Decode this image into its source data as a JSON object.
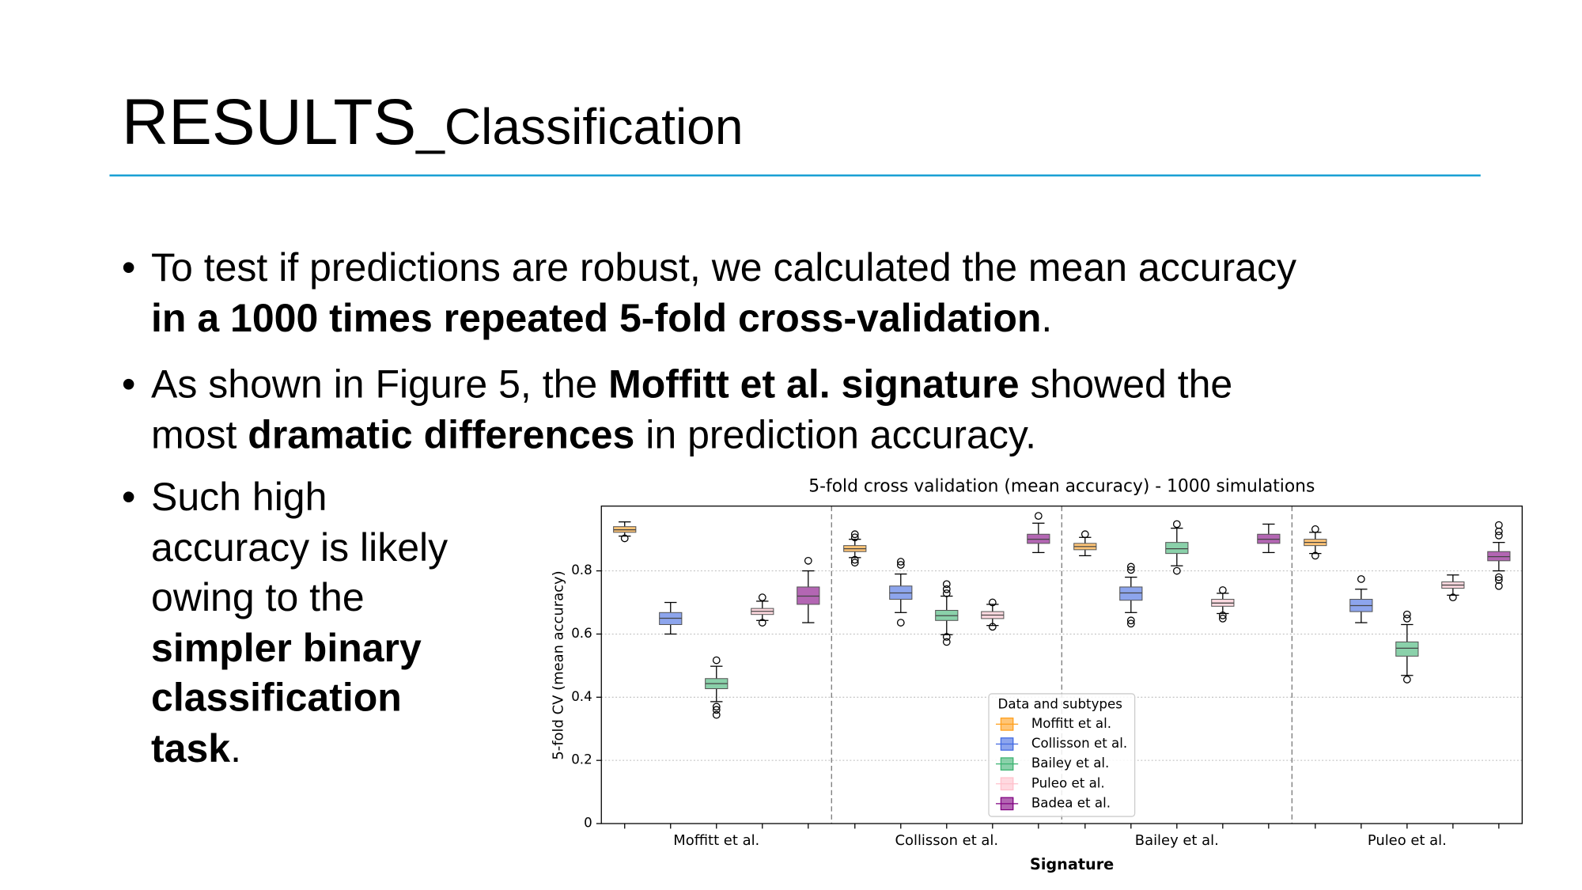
{
  "header": {
    "title": [
      {
        "text": "RESULTS",
        "size": "large"
      },
      {
        "text": "_Classification",
        "size": "small"
      }
    ]
  },
  "bullets": [
    [
      [
        {
          "text": "To test if predictions are robust, we calculated the mean accuracy",
          "bold": false
        }
      ],
      [
        {
          "text": "in a 1000 times repeated 5-fold cross-validation",
          "bold": true
        },
        {
          "text": ".",
          "bold": false
        }
      ]
    ],
    [
      [
        {
          "text": "As shown in Figure 5, the ",
          "bold": false
        },
        {
          "text": "Moffitt et al. signature",
          "bold": true
        },
        {
          "text": " showed the",
          "bold": false
        }
      ],
      [
        {
          "text": "most ",
          "bold": false
        },
        {
          "text": "dramatic differences",
          "bold": true
        },
        {
          "text": " in prediction accuracy.",
          "bold": false
        }
      ]
    ],
    [
      [
        {
          "text": "Such high",
          "bold": false
        }
      ],
      [
        {
          "text": "accuracy is likely",
          "bold": false
        }
      ],
      [
        {
          "text": "owing to the",
          "bold": false
        }
      ],
      [
        {
          "text": "simpler binary",
          "bold": true
        }
      ],
      [
        {
          "text": "classification",
          "bold": true
        }
      ],
      [
        {
          "text": "task",
          "bold": true
        },
        {
          "text": ".",
          "bold": false
        }
      ]
    ]
  ],
  "chart_data": {
    "type": "box",
    "title": "5-fold cross validation (mean accuracy) - 1000 simulations",
    "x_label": "Signature",
    "y_label": "5-fold CV (mean accuracy)",
    "legend_title": "Data and subtypes",
    "categories": [
      "Moffitt et al.",
      "Collisson et al.",
      "Bailey et al.",
      "Puleo et al."
    ],
    "ylim": [
      0,
      1.005
    ],
    "yticks": [
      0,
      0.2,
      0.4,
      0.6,
      0.8
    ],
    "grid": true,
    "series": [
      {
        "name": "Moffitt et al.",
        "color": "#ff9f1c",
        "values": [
          {
            "whislo": 0.91,
            "q1": 0.922,
            "med": 0.93,
            "q3": 0.94,
            "whishi": 0.955,
            "fliers": [
              0.903
            ]
          },
          {
            "whislo": 0.842,
            "q1": 0.861,
            "med": 0.87,
            "q3": 0.88,
            "whishi": 0.9,
            "fliers": [
              0.916,
              0.906,
              0.835,
              0.826
            ]
          },
          {
            "whislo": 0.848,
            "q1": 0.867,
            "med": 0.877,
            "q3": 0.887,
            "whishi": 0.906,
            "fliers": [
              0.916
            ]
          },
          {
            "whislo": 0.855,
            "q1": 0.88,
            "med": 0.89,
            "q3": 0.9,
            "whishi": 0.922,
            "fliers": [
              0.932,
              0.848
            ]
          }
        ]
      },
      {
        "name": "Collisson et al.",
        "color": "#4169e1",
        "values": [
          {
            "whislo": 0.6,
            "q1": 0.63,
            "med": 0.65,
            "q3": 0.668,
            "whishi": 0.7,
            "fliers": []
          },
          {
            "whislo": 0.668,
            "q1": 0.71,
            "med": 0.73,
            "q3": 0.752,
            "whishi": 0.79,
            "fliers": [
              0.829,
              0.819,
              0.636
            ]
          },
          {
            "whislo": 0.668,
            "q1": 0.707,
            "med": 0.73,
            "q3": 0.749,
            "whishi": 0.78,
            "fliers": [
              0.813,
              0.803,
              0.643,
              0.633
            ]
          },
          {
            "whislo": 0.636,
            "q1": 0.671,
            "med": 0.69,
            "q3": 0.71,
            "whishi": 0.742,
            "fliers": [
              0.774
            ]
          }
        ]
      },
      {
        "name": "Bailey et al.",
        "color": "#3cb371",
        "values": [
          {
            "whislo": 0.386,
            "q1": 0.427,
            "med": 0.443,
            "q3": 0.459,
            "whishi": 0.498,
            "fliers": [
              0.517,
              0.37,
              0.36,
              0.344
            ]
          },
          {
            "whislo": 0.598,
            "q1": 0.643,
            "med": 0.658,
            "q3": 0.675,
            "whishi": 0.72,
            "fliers": [
              0.758,
              0.742,
              0.729,
              0.591,
              0.575
            ]
          },
          {
            "whislo": 0.816,
            "q1": 0.855,
            "med": 0.87,
            "q3": 0.89,
            "whishi": 0.935,
            "fliers": [
              0.948,
              0.8
            ]
          },
          {
            "whislo": 0.469,
            "q1": 0.53,
            "med": 0.555,
            "q3": 0.575,
            "whishi": 0.63,
            "fliers": [
              0.662,
              0.649,
              0.456
            ]
          }
        ]
      },
      {
        "name": "Puleo et al.",
        "color": "#ffc0cb",
        "values": [
          {
            "whislo": 0.643,
            "q1": 0.662,
            "med": 0.672,
            "q3": 0.681,
            "whishi": 0.704,
            "fliers": [
              0.716,
              0.636
            ]
          },
          {
            "whislo": 0.627,
            "q1": 0.649,
            "med": 0.66,
            "q3": 0.671,
            "whishi": 0.694,
            "fliers": [
              0.7,
              0.623
            ]
          },
          {
            "whislo": 0.665,
            "q1": 0.688,
            "med": 0.698,
            "q3": 0.71,
            "whishi": 0.729,
            "fliers": [
              0.739,
              0.659,
              0.649
            ]
          },
          {
            "whislo": 0.723,
            "q1": 0.745,
            "med": 0.755,
            "q3": 0.765,
            "whishi": 0.787,
            "fliers": [
              0.716
            ]
          }
        ]
      },
      {
        "name": "Badea et al.",
        "color": "#800080",
        "values": [
          {
            "whislo": 0.636,
            "q1": 0.694,
            "med": 0.72,
            "q3": 0.749,
            "whishi": 0.8,
            "fliers": [
              0.832
            ]
          },
          {
            "whislo": 0.858,
            "q1": 0.887,
            "med": 0.9,
            "q3": 0.916,
            "whishi": 0.951,
            "fliers": [
              0.974
            ]
          },
          {
            "whislo": 0.858,
            "q1": 0.887,
            "med": 0.9,
            "q3": 0.916,
            "whishi": 0.948,
            "fliers": []
          },
          {
            "whislo": 0.8,
            "q1": 0.832,
            "med": 0.845,
            "q3": 0.861,
            "whishi": 0.89,
            "fliers": [
              0.945,
              0.925,
              0.912,
              0.78,
              0.771,
              0.752
            ]
          }
        ]
      }
    ]
  }
}
